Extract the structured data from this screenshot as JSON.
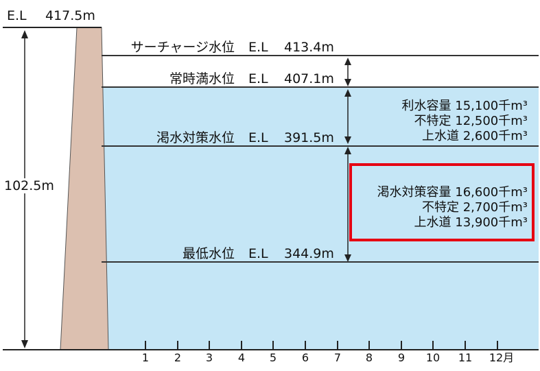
{
  "crest": {
    "label": "E.L",
    "value": "417.5m"
  },
  "height": {
    "value": "102.5m"
  },
  "levels": [
    {
      "name": "サーチャージ水位",
      "el_label": "E.L",
      "value": "413.4m"
    },
    {
      "name": "常時満水位",
      "el_label": "E.L",
      "value": "407.1m"
    },
    {
      "name": "渇水対策水位",
      "el_label": "E.L",
      "value": "391.5m"
    },
    {
      "name": "最低水位",
      "el_label": "E.L",
      "value": "344.9m"
    }
  ],
  "capacity_upper": {
    "lines": [
      {
        "label": "利水容量",
        "value": "15,100千m³"
      },
      {
        "label": "不特定",
        "value": "12,500千m³"
      },
      {
        "label": "上水道",
        "value": "2,600千m³"
      }
    ]
  },
  "capacity_lower": {
    "lines": [
      {
        "label": "渇水対策容量",
        "value": "16,600千m³"
      },
      {
        "label": "不特定",
        "value": "2,700千m³"
      },
      {
        "label": "上水道",
        "value": "13,900千m³"
      }
    ],
    "highlight_color": "#e60012"
  },
  "months": [
    "1",
    "2",
    "3",
    "4",
    "5",
    "6",
    "7",
    "8",
    "9",
    "10",
    "11",
    "12月"
  ],
  "colors": {
    "water": "#c5e6f6",
    "dam": "#dcc0b0",
    "line": "#333333"
  }
}
